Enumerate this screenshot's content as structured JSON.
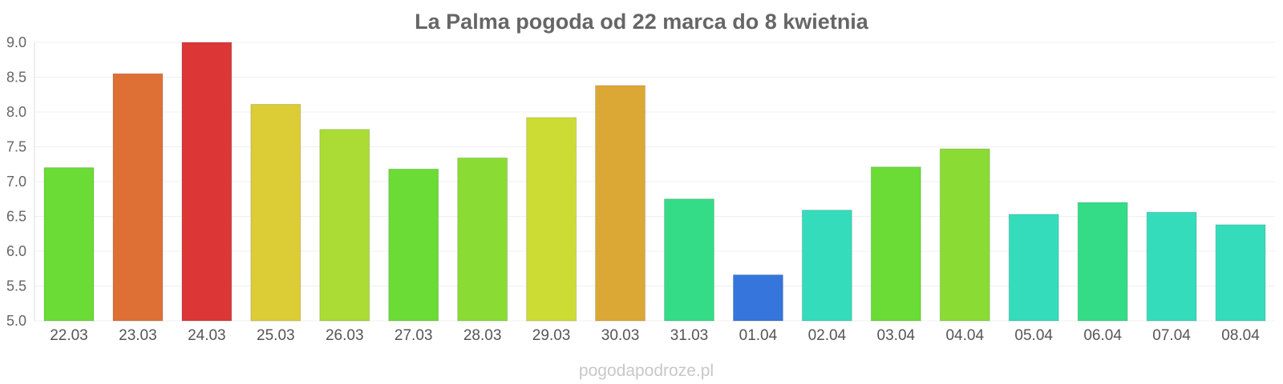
{
  "chart_data": {
    "type": "bar",
    "title": "La Palma pogoda od 22 marca do 8 kwietnia",
    "categories": [
      "22.03",
      "23.03",
      "24.03",
      "25.03",
      "26.03",
      "27.03",
      "28.03",
      "29.03",
      "30.03",
      "31.03",
      "01.04",
      "02.04",
      "03.04",
      "04.04",
      "05.04",
      "06.04",
      "07.04",
      "08.04"
    ],
    "values": [
      7.2,
      8.55,
      9.0,
      8.11,
      7.75,
      7.18,
      7.34,
      7.92,
      8.38,
      6.75,
      5.66,
      6.59,
      7.21,
      7.47,
      6.53,
      6.7,
      6.56,
      6.38
    ],
    "colors": [
      "#6adc35",
      "#de7035",
      "#dc3636",
      "#dccc35",
      "#aadc35",
      "#6adc35",
      "#8adc35",
      "#ccdc35",
      "#dca835",
      "#35dc88",
      "#3575dc",
      "#35dcbc",
      "#6adc35",
      "#8adc35",
      "#35dcbc",
      "#35dc88",
      "#35dcbc",
      "#35dcbc"
    ],
    "ylim": [
      5.0,
      9.0
    ],
    "yticks": [
      "5.0",
      "5.5",
      "6.0",
      "6.5",
      "7.0",
      "7.5",
      "8.0",
      "8.5",
      "9.0"
    ],
    "ylabel": "",
    "xlabel": "",
    "grid": true,
    "legend": "none"
  },
  "watermark": "pogodapodroze.pl"
}
